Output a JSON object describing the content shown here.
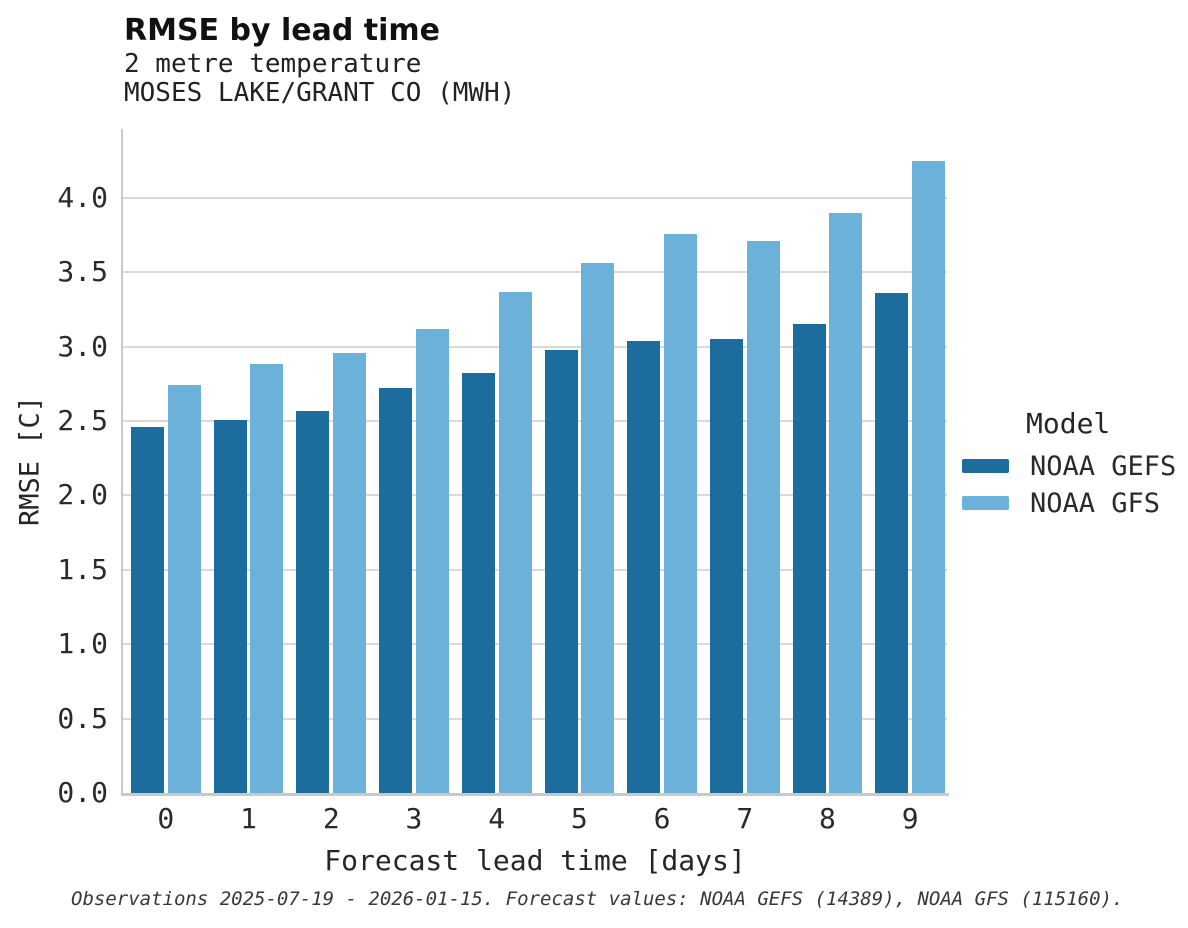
{
  "header": {
    "title": "RMSE by lead time",
    "subtitle_variable": "2 metre temperature",
    "subtitle_station": "MOSES LAKE/GRANT CO (MWH)"
  },
  "chart_data": {
    "type": "bar",
    "title": "RMSE by lead time",
    "subtitle": [
      "2 metre temperature",
      "MOSES LAKE/GRANT CO (MWH)"
    ],
    "categories": [
      "0",
      "1",
      "2",
      "3",
      "4",
      "5",
      "6",
      "7",
      "8",
      "9"
    ],
    "series": [
      {
        "name": "NOAA GEFS",
        "color": "#1c6d9e",
        "values": [
          2.46,
          2.51,
          2.57,
          2.72,
          2.82,
          2.98,
          3.04,
          3.05,
          3.15,
          3.36
        ]
      },
      {
        "name": "NOAA GFS",
        "color": "#6bb1d9",
        "values": [
          2.74,
          2.88,
          2.96,
          3.12,
          3.37,
          3.56,
          3.76,
          3.71,
          3.9,
          4.25
        ]
      }
    ],
    "xlabel": "Forecast lead time [days]",
    "ylabel": "RMSE [C]",
    "ylim": [
      0,
      4.4625
    ],
    "yticks": [
      "0.0",
      "0.5",
      "1.0",
      "1.5",
      "2.0",
      "2.5",
      "3.0",
      "3.5",
      "4.0"
    ],
    "grid": true,
    "legend_title": "Model",
    "legend_position": "right"
  },
  "footer": {
    "note": "Observations 2025-07-19 - 2026-01-15. Forecast values: NOAA GEFS (14389), NOAA GFS (115160)."
  },
  "colors": {
    "grid": "#d9d9d9",
    "spine": "#c9c9c9",
    "series_dark": "#1c6d9e",
    "series_light": "#6bb1d9"
  }
}
